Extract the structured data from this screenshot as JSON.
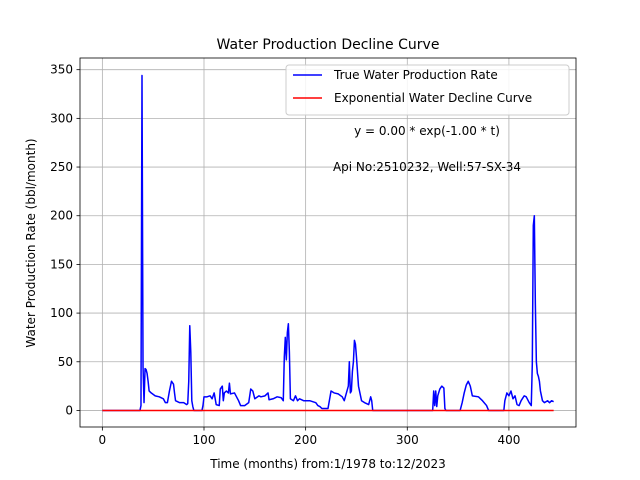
{
  "chart_data": {
    "type": "line",
    "title": "Water Production Decline Curve",
    "xlabel": "Time (months) from:1/1978 to:12/2023",
    "ylabel": "Water Production Rate (bbl/month)",
    "xlim": [
      -22,
      466
    ],
    "ylim": [
      -17,
      362
    ],
    "xticks": [
      0,
      100,
      200,
      300,
      400
    ],
    "yticks": [
      0,
      50,
      100,
      150,
      200,
      250,
      300,
      350
    ],
    "grid": true,
    "legend_position": "top-right",
    "annotations": [
      "y = 0.00 * exp(-1.00 * t)",
      "Api No:2510232, Well:57-SX-34"
    ],
    "series": [
      {
        "name": "True Water Production Rate",
        "color": "#0000ff",
        "points": [
          [
            0,
            0
          ],
          [
            37,
            0
          ],
          [
            38,
            5
          ],
          [
            39,
            344
          ],
          [
            40,
            45
          ],
          [
            41,
            8
          ],
          [
            42,
            43
          ],
          [
            43,
            42
          ],
          [
            44,
            38
          ],
          [
            45,
            30
          ],
          [
            46,
            20
          ],
          [
            48,
            18
          ],
          [
            52,
            15
          ],
          [
            56,
            14
          ],
          [
            60,
            12
          ],
          [
            62,
            8
          ],
          [
            64,
            8
          ],
          [
            66,
            20
          ],
          [
            68,
            30
          ],
          [
            70,
            27
          ],
          [
            71,
            18
          ],
          [
            72,
            10
          ],
          [
            76,
            8
          ],
          [
            80,
            8
          ],
          [
            83,
            6
          ],
          [
            84,
            7
          ],
          [
            85,
            30
          ],
          [
            86,
            87
          ],
          [
            87,
            60
          ],
          [
            88,
            10
          ],
          [
            89,
            4
          ],
          [
            90,
            0
          ],
          [
            98,
            0
          ],
          [
            99,
            5
          ],
          [
            100,
            14
          ],
          [
            103,
            14
          ],
          [
            106,
            15
          ],
          [
            108,
            12
          ],
          [
            110,
            18
          ],
          [
            112,
            6
          ],
          [
            115,
            5
          ],
          [
            116,
            22
          ],
          [
            118,
            25
          ],
          [
            119,
            10
          ],
          [
            120,
            18
          ],
          [
            122,
            20
          ],
          [
            124,
            18
          ],
          [
            125,
            28
          ],
          [
            126,
            17
          ],
          [
            130,
            18
          ],
          [
            134,
            10
          ],
          [
            136,
            5
          ],
          [
            140,
            5
          ],
          [
            144,
            8
          ],
          [
            146,
            22
          ],
          [
            148,
            20
          ],
          [
            150,
            12
          ],
          [
            154,
            15
          ],
          [
            156,
            14
          ],
          [
            160,
            15
          ],
          [
            163,
            18
          ],
          [
            164,
            11
          ],
          [
            168,
            12
          ],
          [
            172,
            14
          ],
          [
            176,
            13
          ],
          [
            178,
            10
          ],
          [
            179,
            55
          ],
          [
            180,
            75
          ],
          [
            181,
            52
          ],
          [
            182,
            80
          ],
          [
            183,
            89
          ],
          [
            184,
            60
          ],
          [
            185,
            12
          ],
          [
            188,
            10
          ],
          [
            190,
            15
          ],
          [
            192,
            10
          ],
          [
            194,
            12
          ],
          [
            198,
            10
          ],
          [
            204,
            10
          ],
          [
            210,
            8
          ],
          [
            212,
            5
          ],
          [
            214,
            4
          ],
          [
            216,
            2
          ],
          [
            222,
            2
          ],
          [
            225,
            20
          ],
          [
            228,
            18
          ],
          [
            232,
            17
          ],
          [
            236,
            14
          ],
          [
            238,
            10
          ],
          [
            242,
            25
          ],
          [
            243,
            50
          ],
          [
            244,
            18
          ],
          [
            245,
            20
          ],
          [
            246,
            40
          ],
          [
            247,
            50
          ],
          [
            248,
            72
          ],
          [
            249,
            68
          ],
          [
            250,
            55
          ],
          [
            252,
            25
          ],
          [
            255,
            10
          ],
          [
            258,
            8
          ],
          [
            262,
            6
          ],
          [
            264,
            14
          ],
          [
            265,
            10
          ],
          [
            266,
            0
          ],
          [
            325,
            0
          ],
          [
            326,
            20
          ],
          [
            327,
            5
          ],
          [
            328,
            20
          ],
          [
            329,
            4
          ],
          [
            330,
            15
          ],
          [
            332,
            22
          ],
          [
            334,
            25
          ],
          [
            336,
            23
          ],
          [
            337,
            2
          ],
          [
            338,
            0
          ],
          [
            352,
            0
          ],
          [
            354,
            8
          ],
          [
            356,
            18
          ],
          [
            358,
            26
          ],
          [
            360,
            30
          ],
          [
            362,
            25
          ],
          [
            364,
            15
          ],
          [
            370,
            14
          ],
          [
            374,
            10
          ],
          [
            378,
            5
          ],
          [
            380,
            0
          ],
          [
            395,
            0
          ],
          [
            396,
            10
          ],
          [
            398,
            18
          ],
          [
            400,
            15
          ],
          [
            402,
            20
          ],
          [
            404,
            12
          ],
          [
            406,
            15
          ],
          [
            408,
            6
          ],
          [
            410,
            5
          ],
          [
            412,
            10
          ],
          [
            415,
            15
          ],
          [
            417,
            14
          ],
          [
            420,
            8
          ],
          [
            422,
            5
          ],
          [
            423,
            48
          ],
          [
            424,
            190
          ],
          [
            425,
            200
          ],
          [
            426,
            110
          ],
          [
            427,
            50
          ],
          [
            428,
            38
          ],
          [
            429,
            35
          ],
          [
            430,
            30
          ],
          [
            431,
            20
          ],
          [
            433,
            10
          ],
          [
            435,
            8
          ],
          [
            438,
            10
          ],
          [
            440,
            8
          ],
          [
            442,
            10
          ],
          [
            444,
            9
          ]
        ]
      },
      {
        "name": "Exponential Water Decline Curve",
        "color": "#ff0000",
        "points": [
          [
            0,
            0
          ],
          [
            444,
            0
          ]
        ]
      }
    ]
  }
}
